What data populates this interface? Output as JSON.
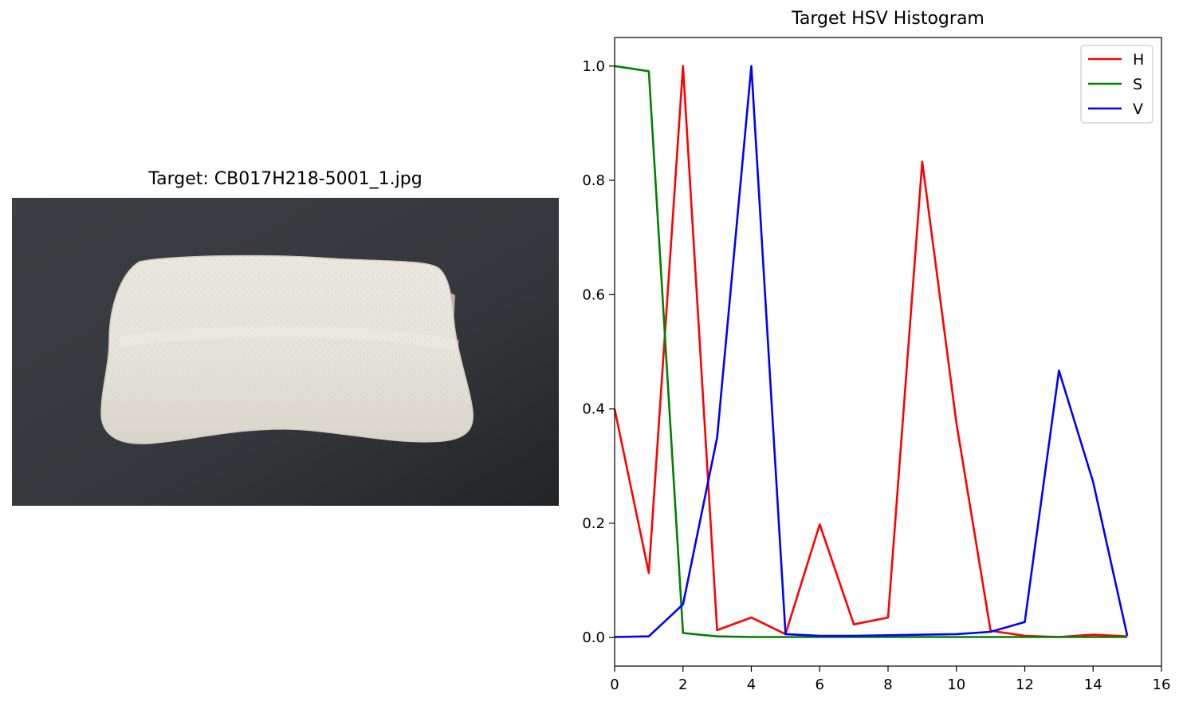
{
  "image_panel": {
    "title": "Target: CB017H218-5001_1.jpg",
    "content": "photo-of-white-pillow-on-dark-background"
  },
  "chart_data": {
    "type": "line",
    "title": "Target HSV Histogram",
    "xlabel": "",
    "ylabel": "",
    "xlim": [
      0,
      16
    ],
    "ylim": [
      -0.05,
      1.05
    ],
    "xticks": [
      0,
      2,
      4,
      6,
      8,
      10,
      12,
      14,
      16
    ],
    "yticks": [
      0.0,
      0.2,
      0.4,
      0.6,
      0.8,
      1.0
    ],
    "xtick_labels": [
      "0",
      "2",
      "4",
      "6",
      "8",
      "10",
      "12",
      "14",
      "16"
    ],
    "ytick_labels": [
      "0.0",
      "0.2",
      "0.4",
      "0.6",
      "0.8",
      "1.0"
    ],
    "grid": false,
    "legend_position": "top-right",
    "x": [
      0,
      1,
      2,
      3,
      4,
      5,
      6,
      7,
      8,
      9,
      10,
      11,
      12,
      13,
      14,
      15
    ],
    "series": [
      {
        "name": "H",
        "color": "#ff0000",
        "values": [
          0.4,
          0.113,
          1.0,
          0.013,
          0.035,
          0.006,
          0.198,
          0.023,
          0.035,
          0.833,
          0.375,
          0.012,
          0.003,
          0.001,
          0.005,
          0.002
        ]
      },
      {
        "name": "S",
        "color": "#008000",
        "values": [
          1.0,
          0.991,
          0.008,
          0.002,
          0.001,
          0.001,
          0.001,
          0.001,
          0.001,
          0.001,
          0.001,
          0.001,
          0.001,
          0.001,
          0.001,
          0.001
        ]
      },
      {
        "name": "V",
        "color": "#0000ff",
        "values": [
          0.001,
          0.002,
          0.058,
          0.35,
          1.0,
          0.006,
          0.003,
          0.003,
          0.004,
          0.005,
          0.006,
          0.01,
          0.027,
          0.467,
          0.272,
          0.003
        ]
      }
    ]
  }
}
